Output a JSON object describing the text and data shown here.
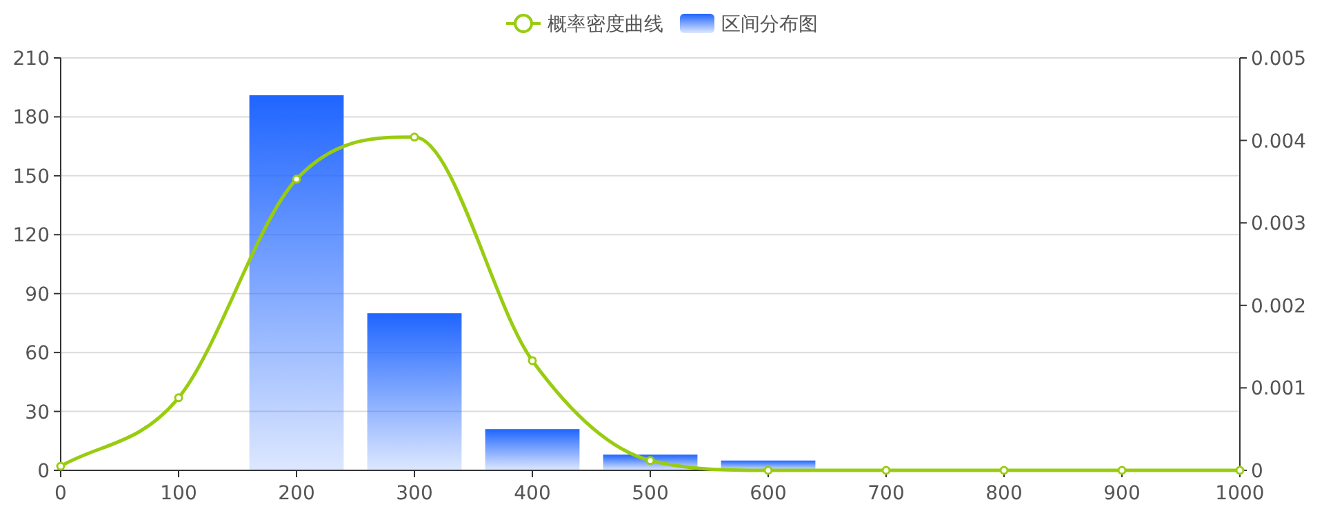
{
  "chart_data": {
    "type": "bar",
    "xlim": [
      0,
      1000
    ],
    "xticks": [
      0,
      100,
      200,
      300,
      400,
      500,
      600,
      700,
      800,
      900,
      1000
    ],
    "ylim": [
      0,
      210
    ],
    "yticks": [
      0,
      30,
      60,
      90,
      120,
      150,
      180,
      210
    ],
    "y2lim": [
      0,
      0.005
    ],
    "y2ticks": [
      0,
      0.001,
      0.002,
      0.003,
      0.004,
      0.005
    ],
    "grid": "y",
    "legend": "top",
    "series": [
      {
        "name": "概率密度曲线",
        "type": "line",
        "axis": "y2",
        "color": "#99cc11",
        "marker": "circle",
        "line_style": "solid",
        "x": [
          0,
          100,
          200,
          300,
          400,
          500,
          600,
          700,
          800,
          900,
          1000
        ],
        "values": [
          5e-05,
          0.00088,
          0.00353,
          0.00404,
          0.00133,
          0.00012,
          0,
          0,
          0,
          0,
          0
        ]
      },
      {
        "name": "区间分布图",
        "color": "#1f65ff",
        "x": [
          200,
          300,
          400,
          500,
          600
        ],
        "values": [
          191,
          80,
          21,
          8,
          5
        ]
      }
    ]
  }
}
